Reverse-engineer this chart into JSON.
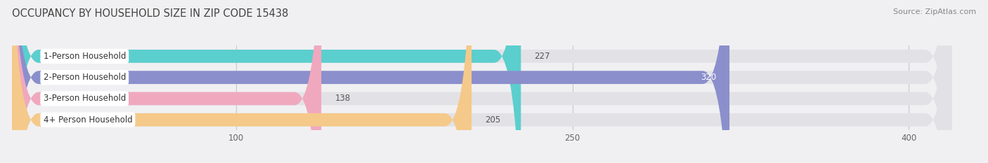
{
  "title": "OCCUPANCY BY HOUSEHOLD SIZE IN ZIP CODE 15438",
  "source": "Source: ZipAtlas.com",
  "categories": [
    "1-Person Household",
    "2-Person Household",
    "3-Person Household",
    "4+ Person Household"
  ],
  "values": [
    227,
    320,
    138,
    205
  ],
  "bar_colors": [
    "#5bcece",
    "#8b8fcc",
    "#f0a8be",
    "#f5c98a"
  ],
  "bg_color": "#f0f0f2",
  "bar_bg_color": "#e2e2e6",
  "xlim": [
    0,
    430
  ],
  "xticks": [
    100,
    250,
    400
  ],
  "figsize": [
    14.06,
    2.33
  ],
  "dpi": 100,
  "bar_height": 0.62,
  "bar_gap": 0.18
}
